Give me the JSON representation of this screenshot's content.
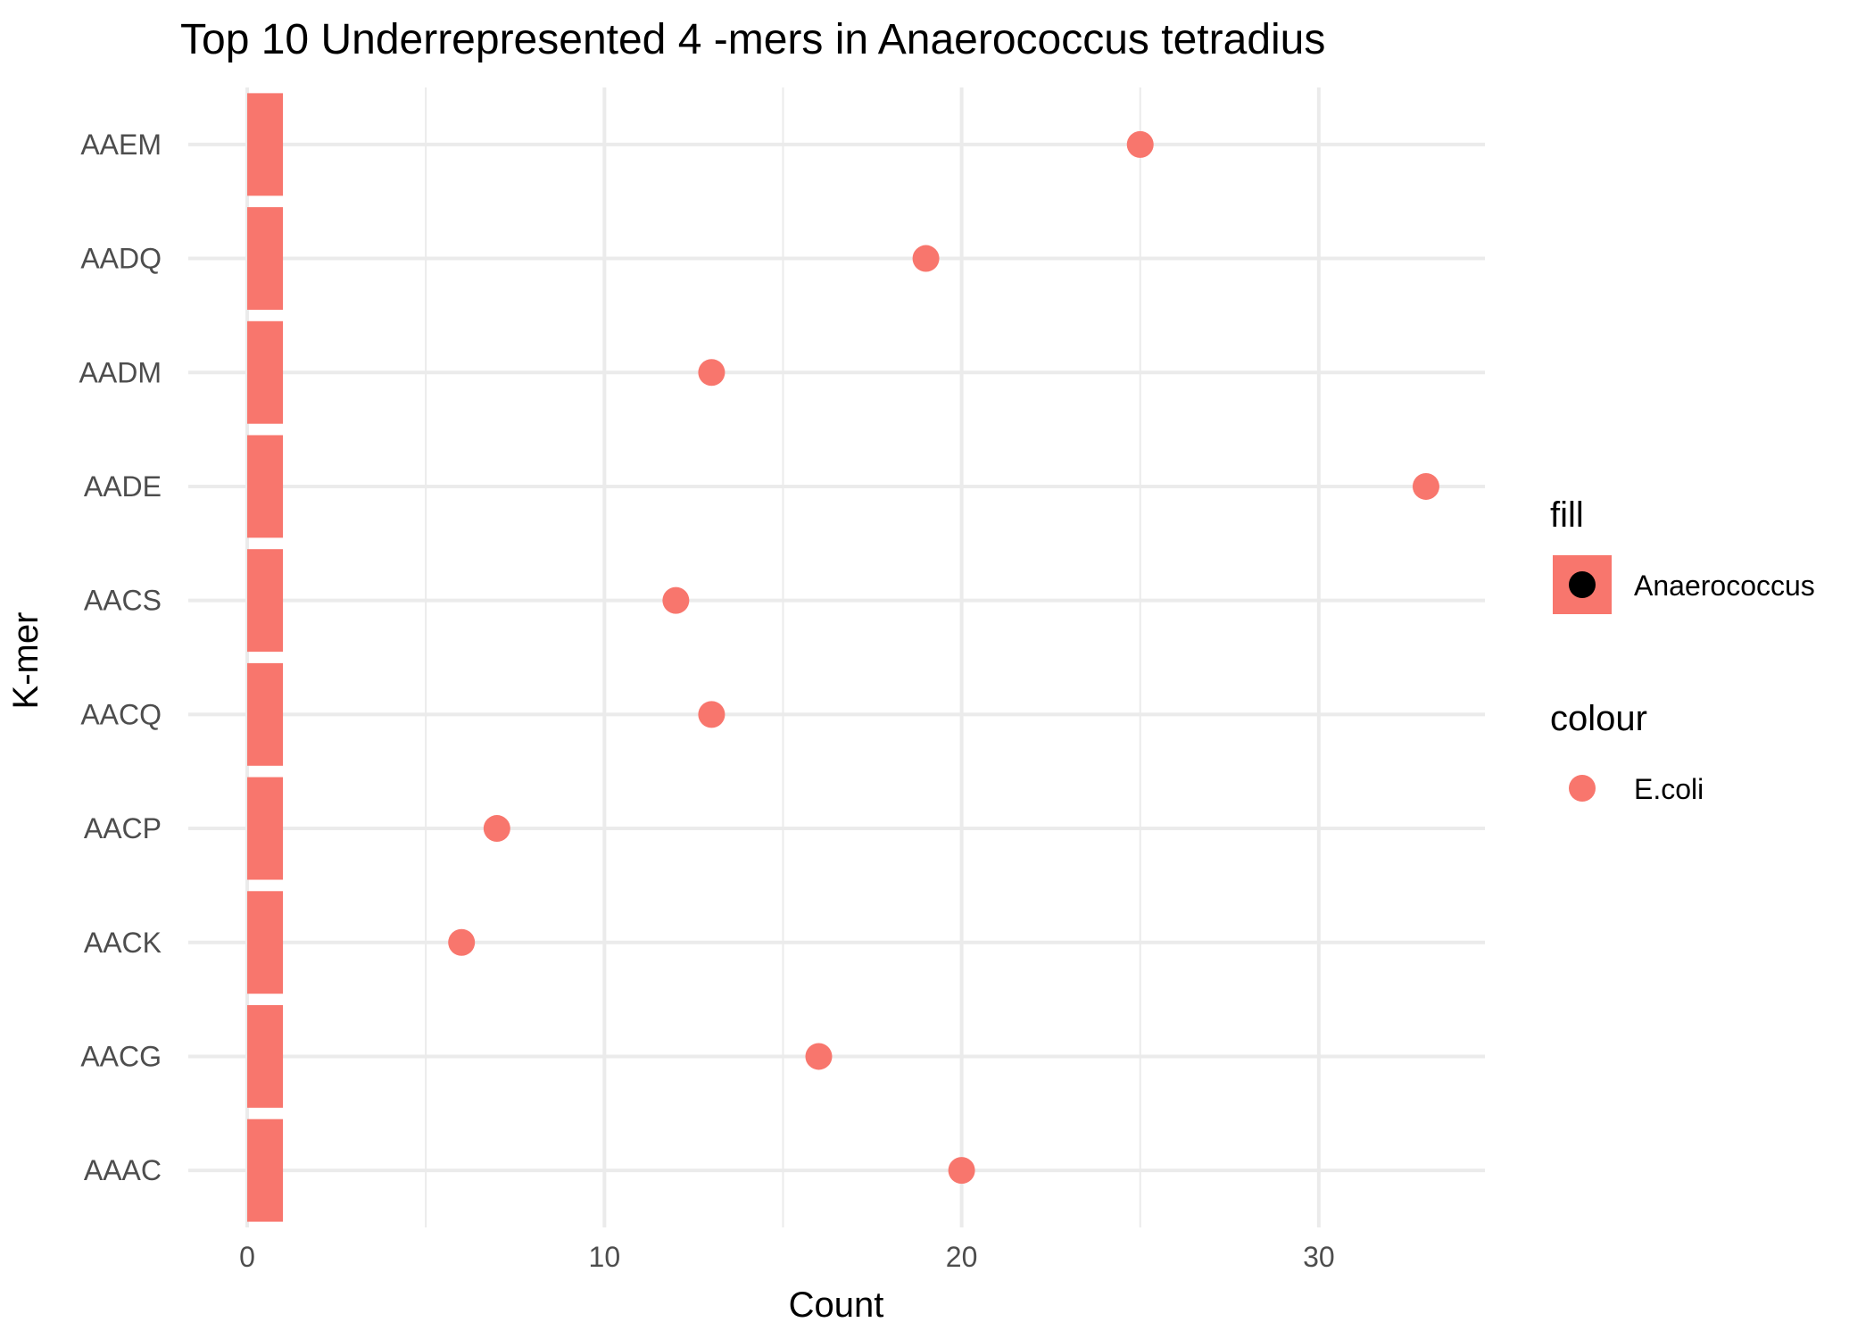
{
  "chart_data": {
    "type": "bar",
    "title": "Top 10 Underrepresented 4 -mers in Anaerococcus tetradius",
    "xlabel": "Count",
    "ylabel": "K-mer",
    "categories": [
      "AAAC",
      "AACG",
      "AACK",
      "AACP",
      "AACQ",
      "AACS",
      "AADE",
      "AADM",
      "AADQ",
      "AAEM"
    ],
    "series": [
      {
        "name": "Anaerococcus",
        "mark": "bar",
        "values": [
          1,
          1,
          1,
          1,
          1,
          1,
          1,
          1,
          1,
          1
        ],
        "color": "#f8766d"
      },
      {
        "name": "E.coli",
        "mark": "point",
        "values": [
          20,
          16,
          6,
          6.99,
          13,
          12,
          33,
          13,
          19,
          25
        ],
        "color": "#f8766d"
      }
    ],
    "xlim": [
      -1.65,
      34.65
    ],
    "xticks": [
      0,
      10,
      20,
      30
    ],
    "xtick_labels": [
      "0",
      "10",
      "20",
      "30"
    ],
    "grid": true,
    "legend": {
      "placement": "right",
      "groups": [
        {
          "title": "fill",
          "label": "Anaerococcus",
          "key": "bar-with-dot"
        },
        {
          "title": "colour",
          "label": "E.coli",
          "key": "dot"
        }
      ]
    }
  }
}
